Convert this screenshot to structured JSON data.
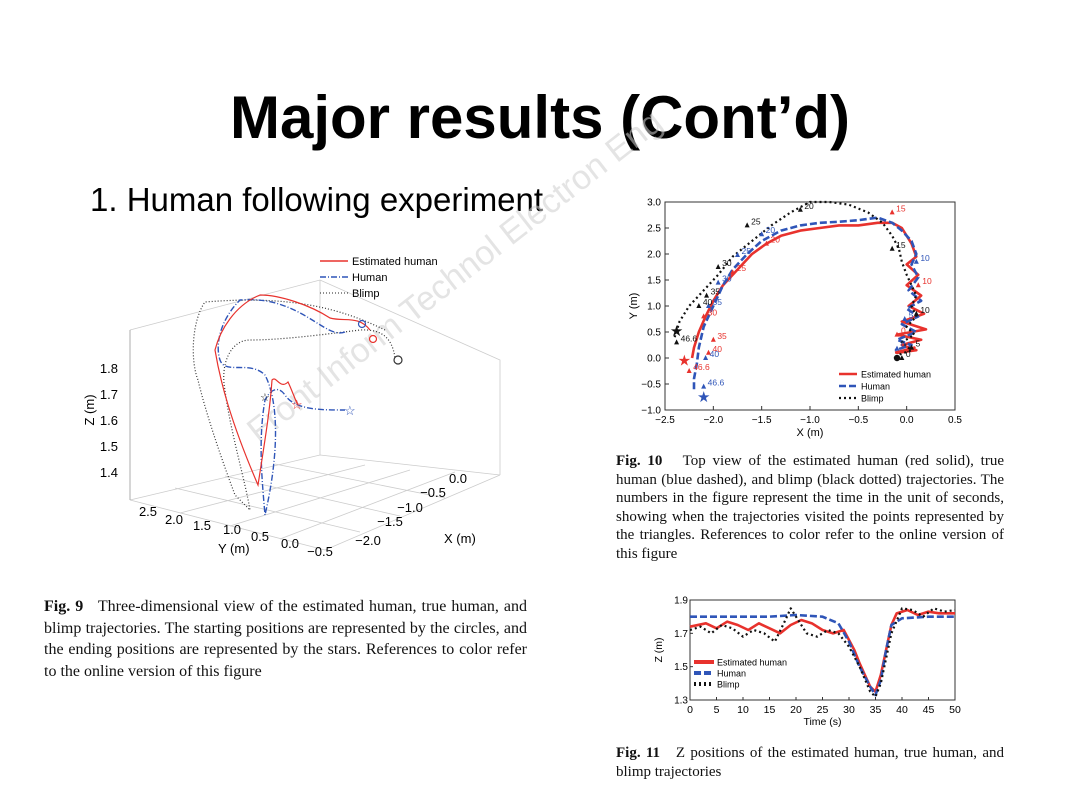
{
  "slide": {
    "title": "Major results (Cont’d)",
    "subtitle": "1. Human following experiment",
    "watermark": "Front Inform Technol Electron Eng"
  },
  "figures": {
    "fig9": {
      "caption_label": "Fig. 9",
      "caption_text": "Three-dimensional view of the estimated human, true human, and blimp trajectories. The starting positions are represented by the circles, and the ending positions are represented by the stars. References to color refer to the online version of this figure"
    },
    "fig10": {
      "caption_label": "Fig. 10",
      "caption_text": "Top view of the estimated human (red solid), true human (blue dashed), and blimp (black dotted) trajectories. The numbers in the figure represent the time in the unit of seconds, showing when the trajectories visited the points represented by the triangles. References to color refer to the online version of this figure"
    },
    "fig11": {
      "caption_label": "Fig. 11",
      "caption_text": "Z positions of the estimated human, true human, and blimp trajectories"
    }
  },
  "colors": {
    "estimated": "#e8322d",
    "human": "#2f55b8",
    "blimp": "#111111"
  },
  "chart_data": [
    {
      "type": "line",
      "id": "fig9-3d",
      "projection": "3d",
      "zlabel": "Z (m)",
      "xlabel": "X (m)",
      "ylabel": "Y (m)",
      "z_ticks": [
        "1.4",
        "1.5",
        "1.6",
        "1.7",
        "1.8"
      ],
      "x_ticks": [
        "0.0",
        "−0.5",
        "−1.0",
        "−1.5",
        "−2.0"
      ],
      "y_ticks": [
        "2.5",
        "2.0",
        "1.5",
        "1.0",
        "0.5",
        "0.0",
        "−0.5"
      ],
      "legend": [
        "Estimated human",
        "Human",
        "Blimp"
      ],
      "legend_position": "top-right"
    },
    {
      "type": "line",
      "id": "fig10-top",
      "xlabel": "X (m)",
      "ylabel": "Y (m)",
      "xlim": [
        -2.5,
        0.5
      ],
      "ylim": [
        -1.0,
        3.0
      ],
      "x_ticks": [
        -2.5,
        -2.0,
        -1.5,
        -1.0,
        -0.5,
        0.0,
        0.5
      ],
      "y_ticks": [
        -1.0,
        -0.5,
        0.0,
        0.5,
        1.0,
        1.5,
        2.0,
        2.5,
        3.0
      ],
      "legend_position": "bottom-right",
      "series": [
        {
          "name": "Estimated human",
          "x": [
            -2.22,
            -2.2,
            -2.15,
            -2.08,
            -2.0,
            -1.9,
            -1.75,
            -1.6,
            -1.45,
            -1.3,
            -1.1,
            -0.9,
            -0.7,
            -0.5,
            -0.3,
            -0.15,
            -0.05,
            0.05,
            0.1,
            0.0,
            0.12,
            0.0,
            0.15,
            0.02,
            0.18,
            -0.05,
            0.2,
            -0.1,
            0.15,
            -0.05,
            0.1,
            -0.1,
            0.08,
            -0.12
          ],
          "y": [
            0.0,
            0.2,
            0.5,
            0.8,
            1.1,
            1.4,
            1.7,
            2.0,
            2.2,
            2.35,
            2.45,
            2.5,
            2.55,
            2.55,
            2.6,
            2.6,
            2.5,
            2.2,
            1.95,
            1.8,
            1.6,
            1.4,
            1.2,
            1.0,
            0.85,
            0.7,
            0.55,
            0.45,
            0.35,
            0.25,
            0.15,
            0.1,
            0.2,
            0.1
          ]
        },
        {
          "name": "Human",
          "x": [
            -2.2,
            -2.2,
            -2.17,
            -2.15,
            -2.1,
            -2.0,
            -1.9,
            -1.8,
            -1.65,
            -1.5,
            -1.3,
            -1.1,
            -0.9,
            -0.7,
            -0.5,
            -0.3,
            -0.15,
            -0.05,
            0.05,
            0.1,
            0.05,
            0.12,
            0.02,
            0.15,
            0.0,
            0.12,
            -0.05,
            0.1,
            -0.1,
            0.05,
            -0.12
          ],
          "y": [
            -0.6,
            -0.4,
            -0.1,
            0.2,
            0.6,
            1.0,
            1.4,
            1.7,
            2.0,
            2.25,
            2.45,
            2.55,
            2.6,
            2.62,
            2.65,
            2.7,
            2.6,
            2.45,
            2.25,
            2.0,
            1.8,
            1.55,
            1.3,
            1.1,
            0.95,
            0.8,
            0.65,
            0.5,
            0.35,
            0.25,
            0.15
          ]
        },
        {
          "name": "Blimp",
          "x": [
            -2.4,
            -2.35,
            -2.25,
            -2.1,
            -1.95,
            -1.8,
            -1.6,
            -1.4,
            -1.2,
            -1.0,
            -0.8,
            -0.6,
            -0.4,
            -0.25,
            -0.15,
            -0.08,
            -0.05,
            0.0,
            0.05,
            0.1,
            0.05,
            0.1,
            0.0,
            0.08,
            -0.05,
            0.05,
            -0.1
          ],
          "y": [
            0.4,
            0.7,
            1.0,
            1.3,
            1.6,
            1.95,
            2.25,
            2.55,
            2.8,
            3.0,
            3.0,
            2.95,
            2.8,
            2.6,
            2.35,
            2.1,
            1.85,
            1.6,
            1.4,
            1.2,
            1.0,
            0.8,
            0.6,
            0.45,
            0.3,
            0.15,
            0.05
          ]
        }
      ],
      "labels": {
        "estimated": [
          [
            "15",
            -0.15,
            2.8
          ],
          [
            "10",
            0.12,
            1.4
          ],
          [
            "20",
            -1.45,
            2.2
          ],
          [
            "25",
            -1.8,
            1.65
          ],
          [
            "30",
            -2.1,
            0.8
          ],
          [
            "35",
            -2.0,
            0.35
          ],
          [
            "40",
            -2.05,
            0.1
          ],
          [
            "46.6",
            -2.25,
            -0.25
          ],
          [
            "0",
            -0.1,
            0.45
          ]
        ],
        "human": [
          [
            "20",
            -1.5,
            2.38
          ],
          [
            "25",
            -1.75,
            1.98
          ],
          [
            "30",
            -1.95,
            1.45
          ],
          [
            "35",
            -2.05,
            1.0
          ],
          [
            "40",
            -2.08,
            0.0
          ],
          [
            "46.6",
            -2.1,
            -0.55
          ],
          [
            "10",
            0.1,
            1.85
          ],
          [
            "5",
            -0.02,
            0.75
          ],
          [
            "0",
            -0.1,
            0.18
          ]
        ],
        "blimp": [
          [
            "20",
            -1.1,
            2.85
          ],
          [
            "25",
            -1.65,
            2.55
          ],
          [
            "30",
            -1.95,
            1.75
          ],
          [
            "35",
            -2.07,
            1.2
          ],
          [
            "40",
            -2.15,
            1.0
          ],
          [
            "46.6",
            -2.38,
            0.3
          ],
          [
            "15",
            -0.15,
            2.1
          ],
          [
            "10",
            0.1,
            0.85
          ],
          [
            "5",
            0.05,
            0.2
          ],
          [
            "0",
            -0.05,
            0.0
          ]
        ]
      },
      "start": [
        -0.1,
        0.0
      ],
      "end": {
        "estimated": [
          -2.3,
          -0.05
        ],
        "human": [
          -2.1,
          -0.75
        ],
        "blimp": [
          -2.38,
          0.52
        ]
      }
    },
    {
      "type": "line",
      "id": "fig11-z",
      "xlabel": "Time (s)",
      "ylabel": "Z (m)",
      "xlim": [
        0,
        50
      ],
      "ylim": [
        1.3,
        1.9
      ],
      "x_ticks": [
        0,
        5,
        10,
        15,
        20,
        25,
        30,
        35,
        40,
        45,
        50
      ],
      "y_ticks": [
        1.3,
        1.5,
        1.7,
        1.9
      ],
      "legend_position": "bottom-left",
      "series": [
        {
          "name": "Estimated human",
          "x": [
            0,
            3,
            5,
            7,
            9,
            11,
            13,
            15,
            17,
            19,
            21,
            23,
            25,
            27,
            29,
            31,
            32,
            33,
            34,
            35,
            36,
            37,
            38,
            39,
            41,
            43,
            45,
            47,
            50
          ],
          "y": [
            1.74,
            1.76,
            1.73,
            1.77,
            1.75,
            1.72,
            1.76,
            1.73,
            1.7,
            1.75,
            1.78,
            1.76,
            1.72,
            1.7,
            1.72,
            1.6,
            1.52,
            1.45,
            1.38,
            1.35,
            1.45,
            1.6,
            1.75,
            1.82,
            1.84,
            1.81,
            1.83,
            1.82,
            1.82
          ]
        },
        {
          "name": "Human",
          "x": [
            0,
            5,
            10,
            15,
            20,
            25,
            28,
            30,
            32,
            34,
            35,
            36,
            37,
            38,
            40,
            45,
            50
          ],
          "y": [
            1.8,
            1.8,
            1.8,
            1.8,
            1.81,
            1.8,
            1.76,
            1.65,
            1.5,
            1.38,
            1.33,
            1.42,
            1.6,
            1.75,
            1.79,
            1.8,
            1.8
          ]
        },
        {
          "name": "Blimp",
          "x": [
            0,
            2,
            4,
            6,
            8,
            10,
            12,
            14,
            16,
            18,
            19,
            20,
            22,
            24,
            26,
            28,
            30,
            32,
            34,
            35,
            36,
            37,
            38,
            40,
            42,
            44,
            46,
            48,
            50
          ],
          "y": [
            1.72,
            1.74,
            1.7,
            1.75,
            1.73,
            1.68,
            1.72,
            1.7,
            1.65,
            1.78,
            1.85,
            1.8,
            1.7,
            1.68,
            1.72,
            1.7,
            1.62,
            1.5,
            1.35,
            1.32,
            1.4,
            1.55,
            1.7,
            1.85,
            1.84,
            1.8,
            1.85,
            1.83,
            1.84
          ]
        }
      ]
    }
  ]
}
